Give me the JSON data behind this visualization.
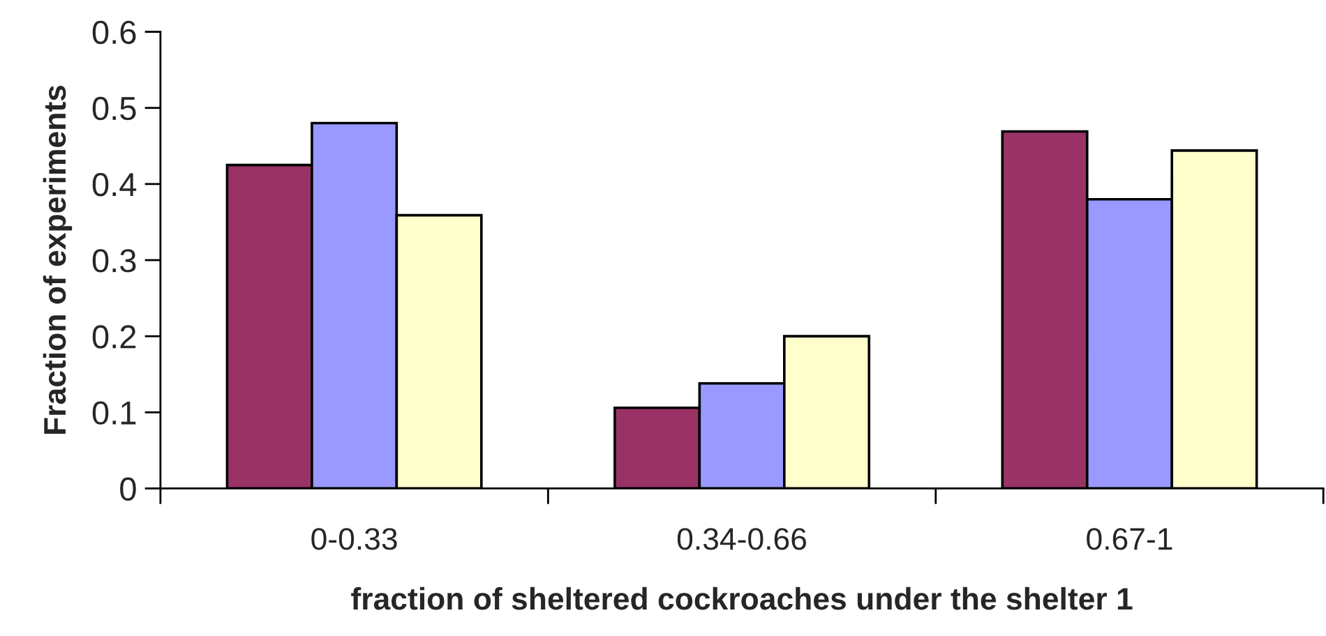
{
  "chart_data": {
    "type": "bar",
    "xlabel": "fraction of sheltered cockroaches under the shelter 1",
    "ylabel": "Fraction of experiments",
    "categories": [
      "0-0.33",
      "0.34-0.66",
      "0.67-1"
    ],
    "series": [
      {
        "color": "#993366",
        "values": [
          0.425,
          0.106,
          0.469
        ]
      },
      {
        "color": "#9999ff",
        "values": [
          0.48,
          0.138,
          0.38
        ]
      },
      {
        "color": "#ffffcc",
        "values": [
          0.359,
          0.2,
          0.444
        ]
      }
    ],
    "ylim": [
      0,
      0.6
    ],
    "yticks": [
      0,
      0.1,
      0.2,
      0.3,
      0.4,
      0.5,
      0.6
    ]
  }
}
